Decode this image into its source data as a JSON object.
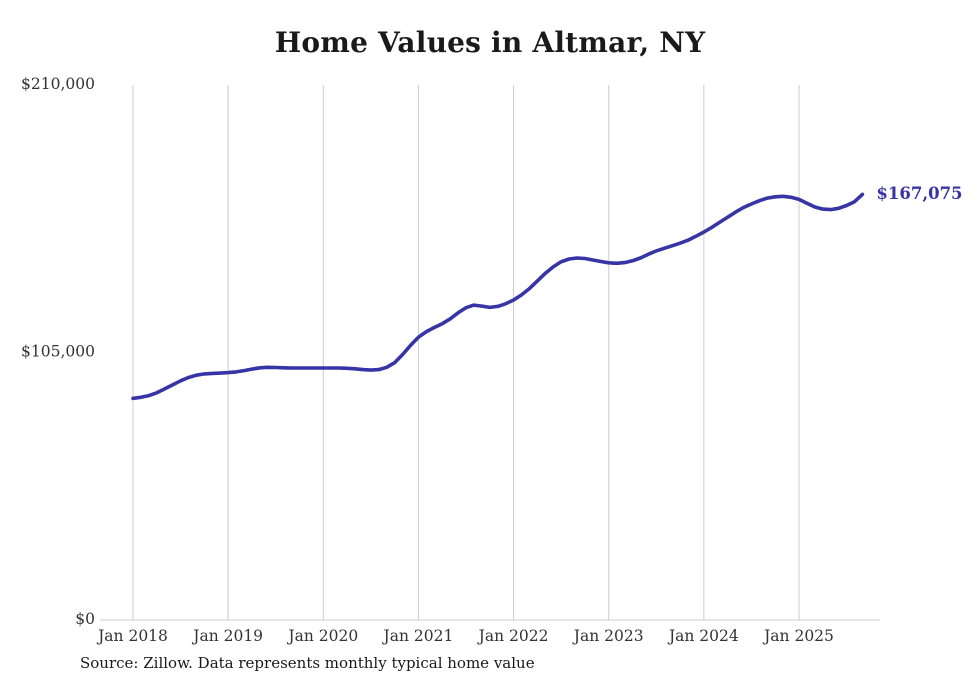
{
  "chart": {
    "title": "Home Values in Altmar, NY",
    "source": "Source: Zillow. Data represents monthly typical home value",
    "line_color": "#3734a6",
    "grid_color": "#cccccc",
    "axis_text_color": "#333333"
  },
  "chart_data": {
    "type": "line",
    "title": "Home Values in Altmar, NY",
    "xlabel": "",
    "ylabel": "",
    "x_start": "2018-01",
    "x_end": "2025-09",
    "frequency": "monthly",
    "ylim": [
      0,
      210000
    ],
    "grid": "vertical-only",
    "legend": "none",
    "yticks": [
      {
        "value": 0,
        "label": "$0"
      },
      {
        "value": 105000,
        "label": "$105,000"
      },
      {
        "value": 210000,
        "label": "$210,000"
      }
    ],
    "xticks": [
      "Jan 2018",
      "Jan 2019",
      "Jan 2020",
      "Jan 2021",
      "Jan 2022",
      "Jan 2023",
      "Jan 2024",
      "Jan 2025"
    ],
    "last_value": 167075,
    "last_value_label": "$167,075",
    "values": [
      87000,
      87400,
      88100,
      89200,
      90700,
      92300,
      93900,
      95200,
      96100,
      96600,
      96800,
      96900,
      97100,
      97400,
      97900,
      98500,
      99000,
      99200,
      99100,
      99000,
      98900,
      98900,
      98900,
      98900,
      98900,
      98900,
      98900,
      98800,
      98600,
      98300,
      98100,
      98300,
      99200,
      101000,
      104200,
      107800,
      111000,
      113200,
      114800,
      116300,
      118200,
      120600,
      122600,
      123600,
      123200,
      122700,
      123100,
      124100,
      125600,
      127600,
      130100,
      133100,
      136100,
      138600,
      140600,
      141700,
      142100,
      141900,
      141300,
      140700,
      140200,
      140000,
      140300,
      141000,
      142100,
      143600,
      144900,
      145900,
      146900,
      147900,
      149100,
      150600,
      152300,
      154100,
      156100,
      158100,
      160100,
      161900,
      163300,
      164600,
      165600,
      166100,
      166300,
      165900,
      165100,
      163600,
      162100,
      161300,
      161100,
      161600,
      162700,
      164200,
      167075
    ]
  }
}
